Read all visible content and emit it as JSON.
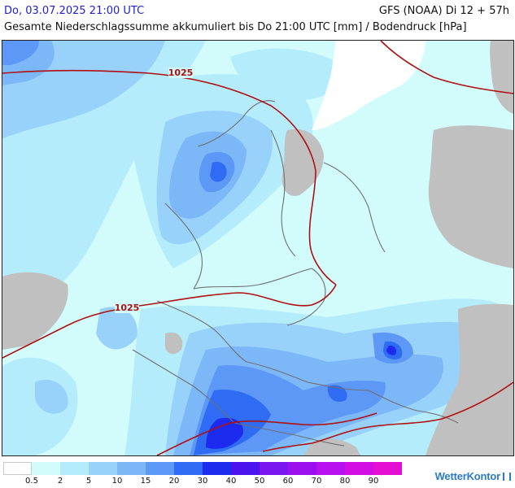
{
  "header": {
    "datetime": "Do, 03.07.2025 21:00 UTC",
    "model_run": "GFS (NOAA) Di 12 + 57h",
    "subtitle": "Gesamte Niederschlagssumme akkumuliert bis Do 21:00 UTC [mm] / Bodendruck [hPa]"
  },
  "map": {
    "isobars": [
      {
        "value": "1025",
        "label": "1025"
      },
      {
        "value": "1025",
        "label": "1025"
      }
    ],
    "land_outside_colour": "#c0c0c0",
    "border_colour": "#707070",
    "isobar_colour": "#b01010"
  },
  "legend": {
    "bins": [
      {
        "color": "#ffffff"
      },
      {
        "color": "#d2fcfc"
      },
      {
        "color": "#b5ecfb"
      },
      {
        "color": "#98d2fa"
      },
      {
        "color": "#7cb7f8"
      },
      {
        "color": "#5d98f6"
      },
      {
        "color": "#2f6cf3"
      },
      {
        "color": "#1d2bf0"
      },
      {
        "color": "#4a14ee"
      },
      {
        "color": "#7a16f0"
      },
      {
        "color": "#9c10f0"
      },
      {
        "color": "#b810ee"
      },
      {
        "color": "#d20ee4"
      },
      {
        "color": "#e40ed2"
      }
    ],
    "ticks": [
      "0.5",
      "2",
      "5",
      "10",
      "15",
      "20",
      "30",
      "40",
      "50",
      "60",
      "70",
      "80",
      "90"
    ]
  },
  "brand": {
    "name": "WetterKontor"
  }
}
